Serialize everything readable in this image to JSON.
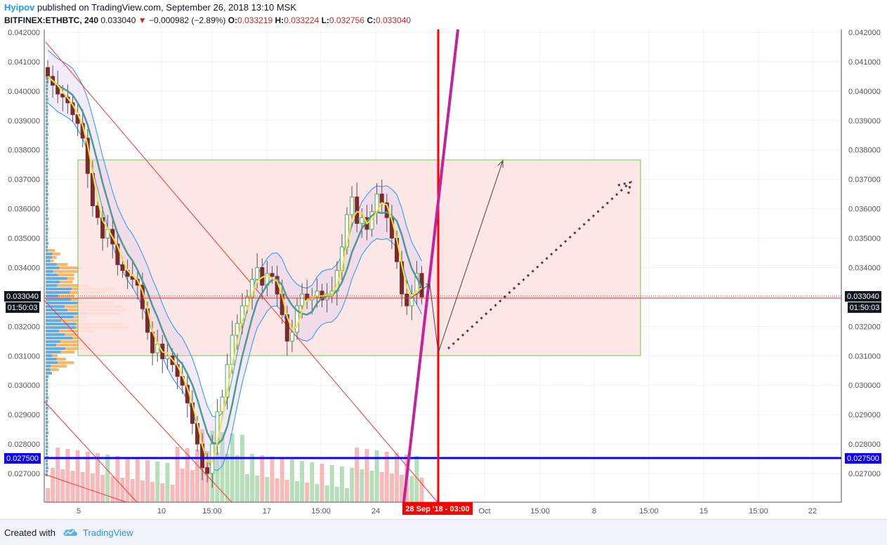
{
  "header": {
    "author": "Hyipov",
    "published": "published on TradingView.com, September 26, 2018 13:10 MSK",
    "symbol": "BITFINEX:ETHBTC, 240",
    "last": "0.033040",
    "change": "−0.000982 (−2.89%)",
    "o_label": "O:",
    "o_value": "0.033219",
    "h_label": "H:",
    "h_value": "0.033224",
    "l_label": "L:",
    "l_value": "0.032756",
    "c_label": "C:",
    "c_value": "0.033040"
  },
  "footer": {
    "created_with": "Created with",
    "brand": "TradingView"
  },
  "colors": {
    "up": "#4caf50",
    "down": "#7b2b2b",
    "box_fill": "#fde3e3",
    "box_border": "#66cc55",
    "hline_blue": "#0d00ff",
    "vline_red": "#ff0000",
    "magenta": "#c2229c"
  },
  "chart_data": {
    "type": "candlestick",
    "ylim": [
      0.026,
      0.0422
    ],
    "price_ticks": [
      "0.042000",
      "0.041000",
      "0.040000",
      "0.039000",
      "0.038000",
      "0.037000",
      "0.036000",
      "0.035000",
      "0.034000",
      "0.033000",
      "0.032000",
      "0.031000",
      "0.030000",
      "0.029000",
      "0.028000",
      "0.027000"
    ],
    "time_ticks": [
      "5",
      "10",
      "15:00",
      "17",
      "15:00",
      "24",
      "Oct",
      "15:00",
      "8",
      "15:00",
      "15",
      "15:00",
      "22"
    ],
    "current_price_label": "0.033040",
    "countdown_label": "01:50:03",
    "level_label": "0.027500",
    "vline_date_label": "28 Sep '18 - 03:00",
    "closes": [
      0.0405,
      0.0402,
      0.0399,
      0.0398,
      0.0396,
      0.0392,
      0.0389,
      0.0384,
      0.0372,
      0.0361,
      0.0357,
      0.035,
      0.0353,
      0.0348,
      0.0341,
      0.0339,
      0.0337,
      0.0336,
      0.0334,
      0.0326,
      0.0318,
      0.0311,
      0.0314,
      0.0309,
      0.031,
      0.0307,
      0.0303,
      0.03,
      0.0294,
      0.0287,
      0.028,
      0.0272,
      0.027,
      0.028,
      0.0291,
      0.0296,
      0.0307,
      0.0317,
      0.0321,
      0.0327,
      0.033,
      0.0336,
      0.034,
      0.0334,
      0.0338,
      0.0337,
      0.0331,
      0.0324,
      0.0315,
      0.0318,
      0.0327,
      0.0331,
      0.0329,
      0.033,
      0.0332,
      0.0329,
      0.0331,
      0.0332,
      0.0339,
      0.0347,
      0.0358,
      0.0364,
      0.0355,
      0.0357,
      0.0353,
      0.0359,
      0.0365,
      0.0362,
      0.0357,
      0.035,
      0.0342,
      0.0331,
      0.0327,
      0.0331,
      0.0338,
      0.033
    ]
  }
}
